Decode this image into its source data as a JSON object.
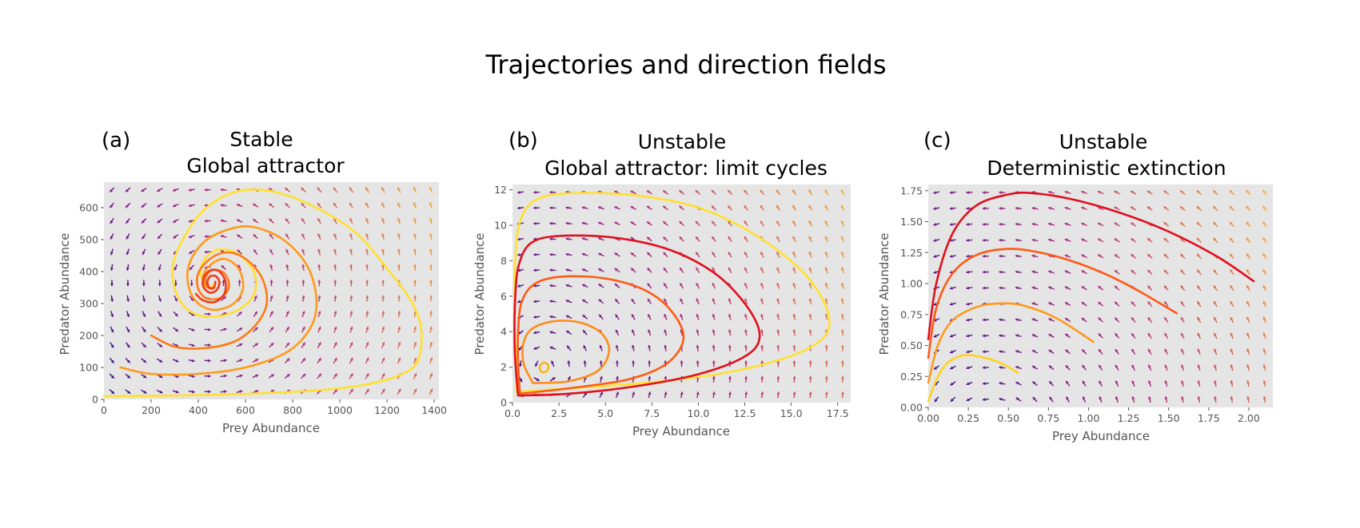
{
  "figure": {
    "title": "Trajectories and direction fields",
    "colors": {
      "background": "#e5e5e5",
      "field_low": "#2c0a8c",
      "field_mid": "#b0287d",
      "field_high": "#fdb52a",
      "trajectory_palette": [
        "#e0101e",
        "#ff5a14",
        "#ff8c1a",
        "#ffc21f",
        "#ffe030"
      ]
    }
  },
  "chart_data": [
    {
      "type": "line",
      "panel_label": "(a)",
      "title_lines": [
        "Stable",
        "Global attractor"
      ],
      "xlabel": "Prey Abundance",
      "ylabel": "Predator Abundance",
      "xlim": [
        0,
        1420
      ],
      "ylim": [
        0,
        680
      ],
      "xticks": [
        0,
        200,
        400,
        600,
        800,
        1000,
        1200,
        1400
      ],
      "xticklabels": [
        "0",
        "200",
        "400",
        "600",
        "800",
        "1000",
        "1200",
        "1400"
      ],
      "yticks": [
        0,
        100,
        200,
        300,
        400,
        500,
        600
      ],
      "yticklabels": [
        "0",
        "100",
        "200",
        "300",
        "400",
        "500",
        "600"
      ],
      "grid": false,
      "direction_field": true,
      "equilibrium": [
        450,
        365
      ],
      "series": [
        {
          "color": "#ffe030",
          "points": [
            [
              0,
              10
            ],
            [
              300,
              12
            ],
            [
              620,
              18
            ],
            [
              900,
              28
            ],
            [
              1100,
              45
            ],
            [
              1250,
              75
            ],
            [
              1330,
              120
            ],
            [
              1345,
              220
            ],
            [
              1300,
              310
            ],
            [
              1200,
              410
            ],
            [
              1070,
              520
            ],
            [
              900,
              600
            ],
            [
              720,
              650
            ],
            [
              560,
              650
            ],
            [
              420,
              590
            ],
            [
              320,
              480
            ],
            [
              290,
              390
            ],
            [
              330,
              300
            ],
            [
              420,
              260
            ],
            [
              540,
              270
            ],
            [
              630,
              320
            ],
            [
              640,
              390
            ],
            [
              580,
              450
            ],
            [
              500,
              470
            ],
            [
              440,
              450
            ],
            [
              410,
              410
            ],
            [
              420,
              370
            ],
            [
              450,
              350
            ],
            [
              470,
              365
            ]
          ]
        },
        {
          "color": "#ff9a1a",
          "points": [
            [
              70,
              100
            ],
            [
              200,
              80
            ],
            [
              400,
              80
            ],
            [
              600,
              100
            ],
            [
              780,
              150
            ],
            [
              880,
              230
            ],
            [
              900,
              320
            ],
            [
              860,
              420
            ],
            [
              760,
              500
            ],
            [
              630,
              540
            ],
            [
              520,
              530
            ],
            [
              420,
              490
            ],
            [
              360,
              420
            ],
            [
              360,
              350
            ],
            [
              400,
              300
            ],
            [
              470,
              280
            ],
            [
              550,
              300
            ],
            [
              590,
              350
            ],
            [
              570,
              410
            ],
            [
              510,
              440
            ],
            [
              450,
              420
            ],
            [
              420,
              385
            ],
            [
              430,
              355
            ],
            [
              460,
              345
            ]
          ]
        },
        {
          "color": "#ff7a14",
          "points": [
            [
              200,
              200
            ],
            [
              300,
              165
            ],
            [
              420,
              160
            ],
            [
              550,
              180
            ],
            [
              640,
              230
            ],
            [
              690,
              300
            ],
            [
              670,
              380
            ],
            [
              600,
              440
            ],
            [
              520,
              460
            ],
            [
              450,
              440
            ],
            [
              400,
              395
            ],
            [
              400,
              345
            ],
            [
              440,
              315
            ],
            [
              500,
              320
            ],
            [
              530,
              355
            ],
            [
              510,
              395
            ],
            [
              460,
              405
            ],
            [
              430,
              380
            ],
            [
              440,
              352
            ],
            [
              465,
              348
            ]
          ]
        },
        {
          "color": "#f03a1a",
          "points": [
            [
              390,
              330
            ],
            [
              420,
              310
            ],
            [
              470,
              305
            ],
            [
              510,
              330
            ],
            [
              515,
              370
            ],
            [
              490,
              400
            ],
            [
              455,
              405
            ],
            [
              425,
              385
            ],
            [
              420,
              355
            ],
            [
              445,
              335
            ],
            [
              475,
              340
            ],
            [
              490,
              365
            ],
            [
              475,
              385
            ],
            [
              450,
              385
            ],
            [
              438,
              365
            ],
            [
              450,
              348
            ],
            [
              468,
              352
            ],
            [
              472,
              368
            ]
          ]
        }
      ]
    },
    {
      "type": "line",
      "panel_label": "(b)",
      "title_lines": [
        "Unstable",
        "Global attractor: limit cycles"
      ],
      "xlabel": "Prey Abundance",
      "ylabel": "Predator Abundance",
      "xlim": [
        0,
        18.2
      ],
      "ylim": [
        0,
        12.3
      ],
      "xticks": [
        0,
        2.5,
        5,
        7.5,
        10,
        12.5,
        15,
        17.5
      ],
      "xticklabels": [
        "0.0",
        "2.5",
        "5.0",
        "7.5",
        "10.0",
        "12.5",
        "15.0",
        "17.5"
      ],
      "yticks": [
        0,
        2,
        4,
        6,
        8,
        10,
        12
      ],
      "yticklabels": [
        "0",
        "2",
        "4",
        "6",
        "8",
        "10",
        "12"
      ],
      "grid": false,
      "direction_field": true,
      "equilibrium": [
        1.7,
        2.0
      ],
      "series": [
        {
          "color": "#ffe030",
          "points": [
            [
              0.2,
              0.6
            ],
            [
              3,
              0.8
            ],
            [
              7,
              1.1
            ],
            [
              11,
              1.6
            ],
            [
              14,
              2.3
            ],
            [
              16,
              3.1
            ],
            [
              17,
              4.1
            ],
            [
              16.8,
              5.6
            ],
            [
              15.5,
              7.5
            ],
            [
              13,
              9.5
            ],
            [
              10,
              11
            ],
            [
              6.5,
              11.7
            ],
            [
              3,
              11.8
            ],
            [
              1.2,
              11.4
            ],
            [
              0.4,
              10.2
            ],
            [
              0.15,
              8
            ],
            [
              0.1,
              5
            ],
            [
              0.2,
              2
            ],
            [
              0.2,
              0.6
            ]
          ]
        },
        {
          "color": "#e0101e",
          "points": [
            [
              0.3,
              0.4
            ],
            [
              3,
              0.5
            ],
            [
              6.5,
              0.9
            ],
            [
              10,
              1.6
            ],
            [
              12.5,
              2.6
            ],
            [
              13.3,
              3.7
            ],
            [
              12.7,
              5.3
            ],
            [
              11,
              7.2
            ],
            [
              8.5,
              8.6
            ],
            [
              5.5,
              9.3
            ],
            [
              2.5,
              9.4
            ],
            [
              1,
              9
            ],
            [
              0.35,
              7.8
            ],
            [
              0.15,
              6
            ],
            [
              0.12,
              3
            ],
            [
              0.3,
              0.4
            ]
          ]
        },
        {
          "color": "#ff5a14",
          "points": [
            [
              0.4,
              0.5
            ],
            [
              3,
              0.8
            ],
            [
              6.2,
              1.3
            ],
            [
              8.3,
              2.2
            ],
            [
              9.2,
              3.6
            ],
            [
              8.6,
              5.1
            ],
            [
              7.2,
              6.3
            ],
            [
              5,
              7
            ],
            [
              2.6,
              7.1
            ],
            [
              1.2,
              6.7
            ],
            [
              0.5,
              5.7
            ],
            [
              0.3,
              4
            ],
            [
              0.3,
              2.2
            ],
            [
              0.4,
              0.5
            ]
          ]
        },
        {
          "color": "#ff8c1a",
          "points": [
            [
              1.1,
              1.1
            ],
            [
              3,
              1.2
            ],
            [
              4.6,
              1.8
            ],
            [
              5.2,
              2.9
            ],
            [
              4.8,
              3.9
            ],
            [
              3.7,
              4.5
            ],
            [
              2.3,
              4.6
            ],
            [
              1.1,
              4.2
            ],
            [
              0.6,
              3.4
            ],
            [
              0.6,
              2.2
            ],
            [
              1.1,
              1.1
            ]
          ]
        },
        {
          "color": "#ffb31a",
          "points": [
            [
              1.45,
              2.0
            ],
            [
              1.55,
              1.75
            ],
            [
              1.75,
              1.72
            ],
            [
              1.92,
              1.9
            ],
            [
              1.9,
              2.15
            ],
            [
              1.7,
              2.25
            ],
            [
              1.52,
              2.15
            ],
            [
              1.45,
              2.0
            ]
          ]
        }
      ]
    },
    {
      "type": "line",
      "panel_label": "(c)",
      "title_lines": [
        "Unstable",
        "Deterministic extinction"
      ],
      "xlabel": "Prey Abundance",
      "ylabel": "Predator Abundance",
      "xlim": [
        0,
        2.15
      ],
      "ylim": [
        0,
        1.8
      ],
      "xticks": [
        0,
        0.25,
        0.5,
        0.75,
        1.0,
        1.25,
        1.5,
        1.75,
        2.0
      ],
      "xticklabels": [
        "0.00",
        "0.25",
        "0.50",
        "0.75",
        "1.00",
        "1.25",
        "1.50",
        "1.75",
        "2.00"
      ],
      "yticks": [
        0,
        0.25,
        0.5,
        0.75,
        1.0,
        1.25,
        1.5,
        1.75
      ],
      "yticklabels": [
        "0.00",
        "0.25",
        "0.50",
        "0.75",
        "1.00",
        "1.25",
        "1.50",
        "1.75"
      ],
      "grid": false,
      "direction_field": true,
      "series": [
        {
          "color": "#e0101e",
          "points": [
            [
              0,
              0.55
            ],
            [
              0.05,
              1.0
            ],
            [
              0.15,
              1.4
            ],
            [
              0.3,
              1.63
            ],
            [
              0.5,
              1.72
            ],
            [
              0.65,
              1.73
            ],
            [
              0.9,
              1.68
            ],
            [
              1.2,
              1.57
            ],
            [
              1.5,
              1.42
            ],
            [
              1.8,
              1.22
            ],
            [
              2.03,
              1.02
            ]
          ]
        },
        {
          "color": "#ff5a14",
          "points": [
            [
              0,
              0.4
            ],
            [
              0.05,
              0.8
            ],
            [
              0.15,
              1.08
            ],
            [
              0.3,
              1.23
            ],
            [
              0.5,
              1.28
            ],
            [
              0.7,
              1.25
            ],
            [
              0.9,
              1.18
            ],
            [
              1.1,
              1.08
            ],
            [
              1.3,
              0.95
            ],
            [
              1.55,
              0.76
            ]
          ]
        },
        {
          "color": "#ff9a1a",
          "points": [
            [
              0,
              0.2
            ],
            [
              0.06,
              0.5
            ],
            [
              0.15,
              0.7
            ],
            [
              0.3,
              0.81
            ],
            [
              0.45,
              0.84
            ],
            [
              0.6,
              0.82
            ],
            [
              0.8,
              0.72
            ],
            [
              1.03,
              0.53
            ]
          ]
        },
        {
          "color": "#ffd21f",
          "points": [
            [
              0,
              0.05
            ],
            [
              0.05,
              0.22
            ],
            [
              0.12,
              0.36
            ],
            [
              0.22,
              0.42
            ],
            [
              0.32,
              0.41
            ],
            [
              0.45,
              0.36
            ],
            [
              0.56,
              0.28
            ]
          ]
        }
      ]
    }
  ]
}
